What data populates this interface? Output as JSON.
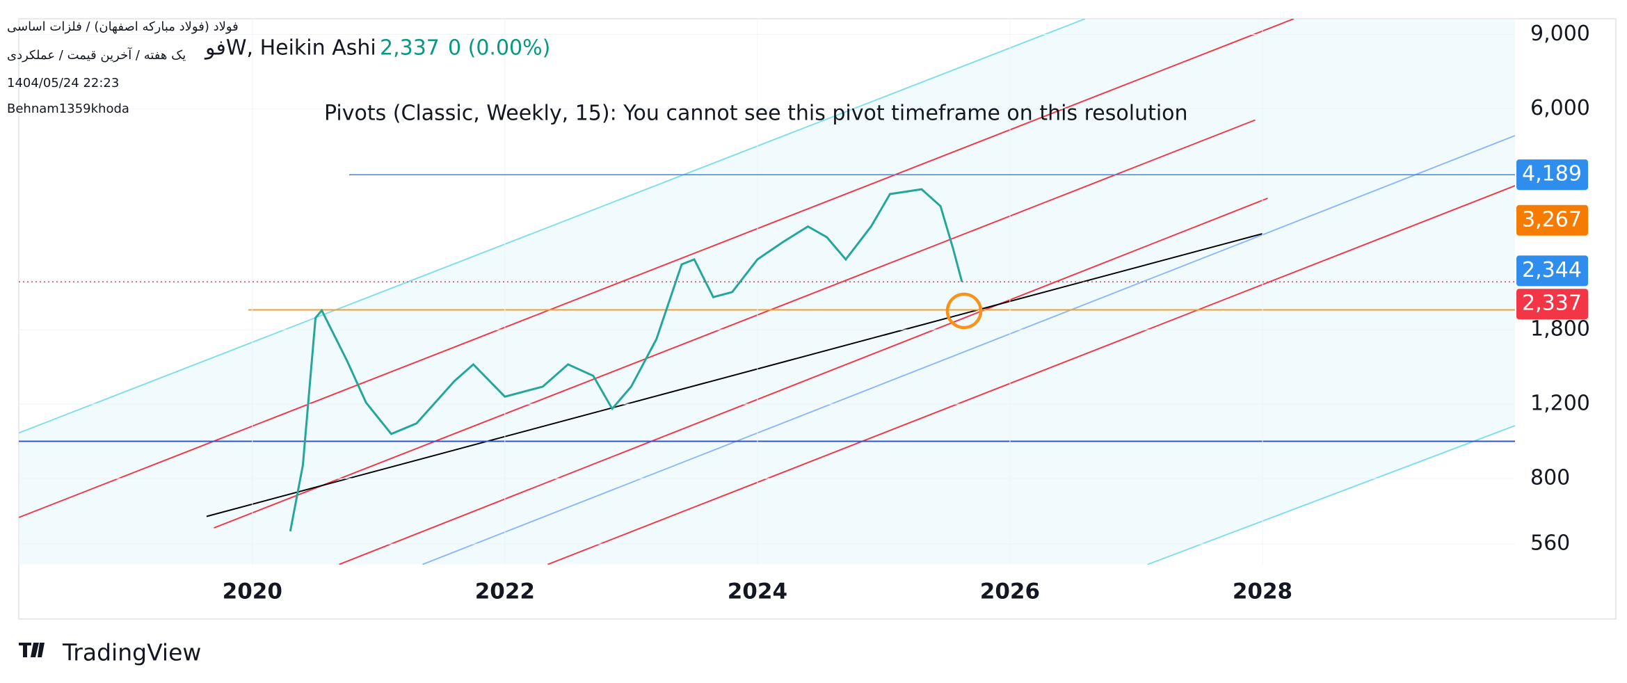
{
  "header": {
    "lines": [
      "فولاد (فولاد مبارکه اصفهان) / فلزات اساسی",
      "یک هفته / آخرین قیمت / عملکردی",
      "1404/05/24 22:23",
      "Behnam1359khoda"
    ],
    "brand": "TradingView"
  },
  "chart_data": {
    "type": "line",
    "title": "فوW, Heikin Ashi",
    "last_price": "2,337",
    "change": "0 (0.00%)",
    "note": "Pivots (Classic, Weekly, 15): You cannot see this pivot timeframe on this resolution",
    "x": [
      2020.3,
      2020.4,
      2020.5,
      2020.55,
      2020.75,
      2020.9,
      2021.1,
      2021.3,
      2021.6,
      2021.75,
      2022.0,
      2022.3,
      2022.5,
      2022.7,
      2022.85,
      2023.0,
      2023.2,
      2023.4,
      2023.5,
      2023.65,
      2023.8,
      2024.0,
      2024.2,
      2024.4,
      2024.55,
      2024.7,
      2024.9,
      2025.05,
      2025.3,
      2025.45,
      2025.55,
      2025.62
    ],
    "values": [
      600,
      860,
      1920,
      2000,
      1520,
      1210,
      1020,
      1080,
      1360,
      1490,
      1250,
      1320,
      1490,
      1400,
      1170,
      1320,
      1710,
      2570,
      2640,
      2150,
      2210,
      2640,
      2900,
      3160,
      2980,
      2640,
      3160,
      3770,
      3870,
      3530,
      2800,
      2337
    ],
    "color": "#26a69a",
    "xlim": [
      2018.15,
      2030.0
    ],
    "xticks": [
      2020,
      2022,
      2024,
      2026,
      2028
    ],
    "ylim": [
      500,
      9800
    ],
    "log_scale": true,
    "yticks": [
      {
        "value": 560,
        "label": "560"
      },
      {
        "value": 800,
        "label": "800"
      },
      {
        "value": 1200,
        "label": "1,200"
      },
      {
        "value": 1800,
        "label": "1,800"
      },
      {
        "value": 6000,
        "label": "6,000"
      },
      {
        "value": 9000,
        "label": "9,000"
      }
    ],
    "price_labels": [
      {
        "value": 4189,
        "label": "4,189",
        "color": "#2f8ded"
      },
      {
        "value": 3267,
        "label": "3,267",
        "color": "#f57c00"
      },
      {
        "value": 2344,
        "label": "2,344",
        "color": "#2f8ded"
      },
      {
        "value": 2337,
        "label": "2,337",
        "color": "#f23645"
      }
    ]
  }
}
